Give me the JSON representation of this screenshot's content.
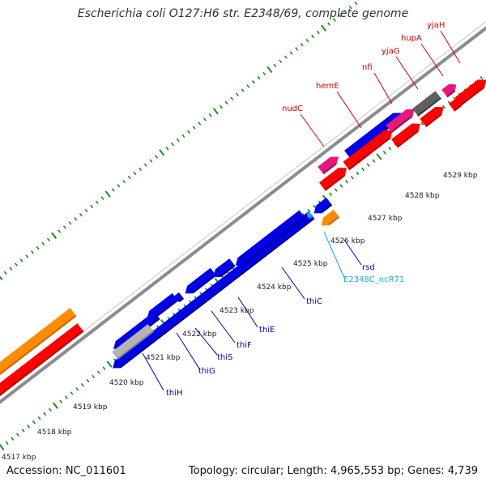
{
  "title": "Escherichia coli O127:H6 str. E2348/69, complete genome",
  "footer": {
    "accession": "Accession: NC_011601",
    "stats": "Topology: circular; Length: 4,965,553 bp; Genes: 4,739"
  },
  "colors": {
    "backbone": "#8c8c8c",
    "tick": "#1e8a1e",
    "cds": "#ff0000",
    "cds_dark": "#b40000",
    "blue": "#0000e6",
    "blue_dark": "#00008c",
    "orange": "#ff8c00",
    "magenta": "#e6197a",
    "gray": "#606060",
    "cyan": "#22a8e0",
    "red_label": "#cc0000",
    "blue_label": "#0000aa",
    "cyan_label": "#1aa9d6"
  },
  "scale_labels": [
    "4517 kbp",
    "4518 kbp",
    "4519 kbp",
    "4520 kbp",
    "4521 kbp",
    "4522 kbp",
    "4523 kbp",
    "4524 kbp",
    "4525 kbp",
    "4526 kbp",
    "4527 kbp",
    "4528 kbp",
    "4529 kbp"
  ],
  "top_genes": [
    "nudC",
    "hemE",
    "nfi",
    "yjaG",
    "hupA",
    "yjaH"
  ],
  "bottom_genes": [
    "thiH",
    "thiG",
    "thiS",
    "thiF",
    "thiE",
    "thiC",
    "rsd",
    "E2348C_ncR71"
  ]
}
